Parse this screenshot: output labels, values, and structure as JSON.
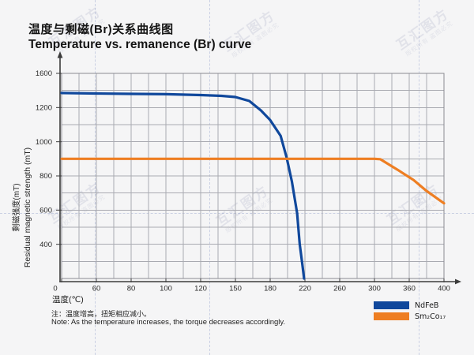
{
  "page": {
    "background": "#f5f5f6"
  },
  "header": {
    "title_zh": "温度与剩磁(Br)关系曲线图",
    "title_en": "Temperature vs. remanence (Br) curve"
  },
  "axes": {
    "y_label_zh": "剩磁强度(mT)",
    "y_label_en": "Residual magnetic strength (mT)",
    "x_label": "温度(℃)"
  },
  "note": {
    "zh": "注：温度增高，扭矩相应减小。",
    "en": "Note: As the temperature increases, the torque decreases accordingly."
  },
  "watermark": {
    "main": "互汇图方",
    "sub": "版权所有 盗图必究"
  },
  "colors": {
    "ndfeb_blue": "#10489c",
    "smco_orange": "#ee7e22",
    "grid": "#a9aab1",
    "plot_border": "#8b8b92",
    "axis": "#3c3c3c",
    "tick_text": "#2a2a2a"
  },
  "legend": {
    "items": [
      {
        "label": "NdFeB",
        "color": "#10489c"
      },
      {
        "label": "Sm₂Co₁₇",
        "color": "#ee7e22"
      }
    ]
  },
  "chart_data": {
    "type": "line",
    "title": "Temperature vs. remanence (Br) curve",
    "xlabel": "温度(℃)",
    "ylabel": "Residual magnetic strength (mT)",
    "grid": true,
    "legend_position": "bottom-right",
    "x_ticks": [
      0,
      60,
      80,
      100,
      120,
      150,
      180,
      220,
      260,
      300,
      360,
      400
    ],
    "y_tick_labels": [
      1600,
      1200,
      1000,
      800,
      600,
      400
    ],
    "origin_label": "0",
    "y_axis_anchors": [
      1600,
      1200,
      1000,
      800,
      600,
      400,
      0
    ],
    "series": [
      {
        "name": "NdFeB",
        "color": "#10489c",
        "points": [
          [
            0,
            1370
          ],
          [
            60,
            1365
          ],
          [
            80,
            1360
          ],
          [
            100,
            1356
          ],
          [
            120,
            1346
          ],
          [
            138,
            1337
          ],
          [
            150,
            1323
          ],
          [
            162,
            1277
          ],
          [
            172,
            1183
          ],
          [
            180,
            1127
          ],
          [
            192,
            1035
          ],
          [
            199,
            906
          ],
          [
            205,
            767
          ],
          [
            211,
            582
          ],
          [
            214,
            400
          ],
          [
            217,
            166
          ],
          [
            219,
            0
          ]
        ]
      },
      {
        "name": "Sm₂Co₁₇",
        "color": "#ee7e22",
        "points": [
          [
            0,
            900
          ],
          [
            60,
            900
          ],
          [
            100,
            900
          ],
          [
            150,
            900
          ],
          [
            200,
            900
          ],
          [
            260,
            900
          ],
          [
            300,
            900
          ],
          [
            310,
            898
          ],
          [
            340,
            836
          ],
          [
            365,
            776
          ],
          [
            380,
            712
          ],
          [
            400,
            640
          ]
        ]
      }
    ]
  }
}
